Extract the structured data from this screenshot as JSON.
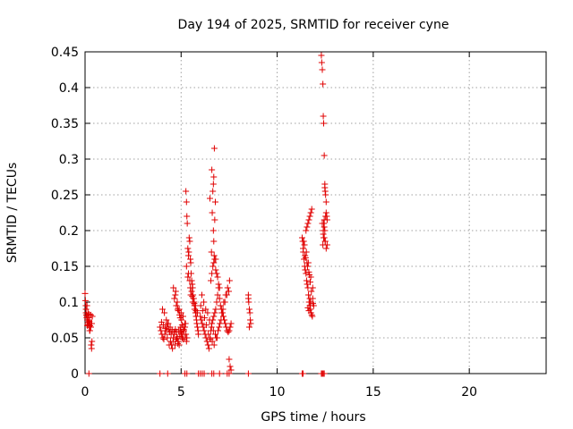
{
  "chart_data": {
    "type": "scatter",
    "title": "Day 194 of 2025, SRMTID for receiver cyne",
    "xlabel": "GPS time / hours",
    "ylabel": "SRMTID / TECUs",
    "xlim": [
      0,
      24
    ],
    "ylim": [
      0,
      0.45
    ],
    "xticks": [
      0,
      5,
      10,
      15,
      20
    ],
    "yticks": [
      0,
      0.05,
      0.1,
      0.15,
      0.2,
      0.25,
      0.3,
      0.35,
      0.4,
      0.45
    ],
    "xtick_labels": [
      "0",
      "5",
      "10",
      "15",
      "20"
    ],
    "ytick_labels": [
      "0",
      "0.05",
      "0.1",
      "0.15",
      "0.2",
      "0.25",
      "0.3",
      "0.35",
      "0.4",
      "0.45"
    ],
    "grid": true,
    "series": [
      {
        "name": "SRMTID",
        "color": "#e00000",
        "marker": "+",
        "x": [
          0.0,
          0.02,
          0.04,
          0.05,
          0.07,
          0.09,
          0.1,
          0.12,
          0.14,
          0.15,
          0.17,
          0.19,
          0.2,
          0.22,
          0.24,
          0.26,
          0.28,
          0.3,
          0.32,
          0.34,
          0.36,
          0.38,
          0.05,
          0.1,
          0.15,
          0.2,
          0.25,
          0.3,
          0.35,
          0.12,
          0.22,
          3.9,
          3.95,
          4.0,
          4.05,
          4.1,
          4.15,
          4.2,
          4.25,
          4.3,
          4.35,
          4.4,
          4.45,
          4.5,
          4.55,
          4.6,
          4.65,
          4.7,
          4.75,
          4.8,
          4.85,
          4.9,
          4.95,
          5.0,
          5.05,
          5.1,
          5.15,
          5.2,
          5.25,
          5.3,
          3.98,
          4.08,
          4.18,
          4.28,
          4.38,
          4.48,
          4.58,
          4.68,
          4.78,
          4.88,
          4.98,
          5.08,
          5.18,
          5.28,
          4.03,
          4.13,
          4.23,
          4.33,
          4.43,
          4.53,
          4.63,
          4.73,
          4.83,
          4.93,
          5.03,
          5.13,
          5.23,
          4.6,
          4.7,
          4.8,
          4.9,
          5.0,
          5.1,
          5.2,
          4.65,
          4.75,
          4.85,
          4.95,
          5.05,
          5.15,
          4.72,
          4.82,
          4.92,
          5.02,
          5.12,
          5.25,
          5.28,
          5.3,
          5.32,
          5.35,
          5.38,
          5.4,
          5.42,
          5.45,
          5.48,
          5.5,
          5.52,
          5.55,
          5.58,
          5.6,
          5.62,
          5.65,
          5.68,
          5.7,
          5.72,
          5.75,
          5.78,
          5.8,
          5.82,
          5.85,
          5.88,
          5.9,
          5.5,
          5.6,
          5.7,
          5.55,
          5.65,
          5.75,
          5.45,
          5.35,
          5.85,
          5.28,
          5.38,
          5.48,
          5.58,
          5.68,
          5.78,
          6.0,
          6.05,
          6.1,
          6.15,
          6.2,
          6.25,
          6.3,
          6.35,
          6.4,
          6.45,
          6.5,
          6.55,
          6.6,
          6.65,
          6.7,
          6.75,
          6.8,
          6.85,
          6.9,
          6.95,
          7.0,
          7.05,
          7.1,
          7.15,
          7.2,
          7.25,
          7.3,
          7.35,
          7.4,
          7.45,
          7.5,
          7.55,
          7.6,
          6.02,
          6.12,
          6.22,
          6.32,
          6.42,
          6.52,
          6.62,
          6.72,
          6.82,
          6.92,
          7.02,
          7.12,
          7.22,
          7.32,
          7.42,
          7.52,
          6.08,
          6.18,
          6.28,
          6.38,
          6.48,
          6.58,
          6.68,
          6.78,
          6.88,
          6.98,
          7.08,
          7.18,
          7.28,
          7.38,
          7.48,
          6.55,
          6.6,
          6.65,
          6.7,
          6.75,
          6.8,
          6.85,
          6.9,
          6.95,
          7.0,
          6.7,
          6.72,
          6.68,
          6.75,
          6.62,
          6.78,
          6.5,
          6.65,
          6.7,
          6.6,
          6.73,
          6.68,
          6.8,
          6.58,
          7.5,
          7.55,
          7.6,
          8.5,
          8.52,
          8.55,
          8.58,
          8.6,
          8.62,
          8.55,
          8.5,
          11.3,
          11.33,
          11.36,
          11.4,
          11.43,
          11.46,
          11.5,
          11.53,
          11.56,
          11.6,
          11.63,
          11.66,
          11.7,
          11.73,
          11.76,
          11.8,
          11.83,
          11.86,
          11.35,
          11.45,
          11.55,
          11.65,
          11.75,
          11.85,
          11.38,
          11.48,
          11.58,
          11.68,
          11.78,
          11.42,
          11.52,
          11.62,
          11.72,
          11.5,
          11.55,
          11.6,
          11.65,
          11.7,
          11.75,
          11.8,
          11.85,
          11.9,
          11.6,
          11.65,
          11.7,
          11.75,
          12.3,
          12.32,
          12.35,
          12.38,
          12.4,
          12.42,
          12.45,
          12.48,
          12.5,
          12.52,
          12.55,
          12.58,
          12.6,
          12.35,
          12.4,
          12.45,
          12.5,
          12.55,
          12.38,
          12.42,
          12.48,
          12.52,
          12.45,
          12.4,
          12.5,
          12.45,
          12.55,
          12.6,
          12.48,
          12.42
        ],
        "y": [
          0.112,
          0.102,
          0.095,
          0.085,
          0.082,
          0.078,
          0.08,
          0.075,
          0.07,
          0.068,
          0.072,
          0.078,
          0.083,
          0.065,
          0.06,
          0.067,
          0.07,
          0.082,
          0.04,
          0.035,
          0.045,
          0.08,
          0.09,
          0.095,
          0.085,
          0.075,
          0.06,
          0.065,
          0.07,
          0.067,
          0.073,
          0.065,
          0.06,
          0.055,
          0.05,
          0.048,
          0.055,
          0.06,
          0.065,
          0.07,
          0.062,
          0.058,
          0.045,
          0.04,
          0.035,
          0.05,
          0.055,
          0.062,
          0.058,
          0.05,
          0.045,
          0.04,
          0.06,
          0.055,
          0.05,
          0.048,
          0.06,
          0.065,
          0.055,
          0.05,
          0.072,
          0.068,
          0.063,
          0.05,
          0.04,
          0.055,
          0.045,
          0.04,
          0.05,
          0.06,
          0.065,
          0.055,
          0.05,
          0.045,
          0.09,
          0.085,
          0.075,
          0.07,
          0.065,
          0.06,
          0.058,
          0.048,
          0.042,
          0.052,
          0.058,
          0.062,
          0.07,
          0.12,
          0.11,
          0.1,
          0.09,
          0.085,
          0.08,
          0.07,
          0.105,
          0.095,
          0.088,
          0.078,
          0.068,
          0.06,
          0.115,
          0.09,
          0.082,
          0.075,
          0.065,
          0.255,
          0.24,
          0.22,
          0.21,
          0.175,
          0.165,
          0.17,
          0.19,
          0.185,
          0.16,
          0.155,
          0.14,
          0.13,
          0.125,
          0.12,
          0.11,
          0.105,
          0.1,
          0.095,
          0.09,
          0.085,
          0.08,
          0.075,
          0.07,
          0.065,
          0.06,
          0.055,
          0.11,
          0.1,
          0.09,
          0.115,
          0.105,
          0.095,
          0.13,
          0.135,
          0.085,
          0.15,
          0.14,
          0.12,
          0.108,
          0.098,
          0.088,
          0.08,
          0.075,
          0.07,
          0.065,
          0.06,
          0.055,
          0.05,
          0.045,
          0.04,
          0.035,
          0.05,
          0.06,
          0.07,
          0.075,
          0.08,
          0.085,
          0.09,
          0.1,
          0.11,
          0.12,
          0.105,
          0.095,
          0.09,
          0.085,
          0.08,
          0.075,
          0.07,
          0.065,
          0.06,
          0.058,
          0.06,
          0.065,
          0.07,
          0.095,
          0.088,
          0.078,
          0.068,
          0.055,
          0.048,
          0.045,
          0.04,
          0.05,
          0.06,
          0.07,
          0.085,
          0.1,
          0.11,
          0.12,
          0.13,
          0.11,
          0.1,
          0.09,
          0.085,
          0.075,
          0.065,
          0.06,
          0.055,
          0.05,
          0.065,
          0.075,
          0.09,
          0.1,
          0.11,
          0.115,
          0.13,
          0.14,
          0.15,
          0.155,
          0.16,
          0.145,
          0.14,
          0.135,
          0.125,
          0.12,
          0.185,
          0.165,
          0.2,
          0.215,
          0.225,
          0.24,
          0.245,
          0.255,
          0.275,
          0.285,
          0.315,
          0.265,
          0.16,
          0.17,
          0.02,
          0.01,
          0.005,
          0.11,
          0.1,
          0.09,
          0.085,
          0.075,
          0.07,
          0.065,
          0.105,
          0.19,
          0.185,
          0.17,
          0.16,
          0.15,
          0.145,
          0.14,
          0.13,
          0.125,
          0.12,
          0.11,
          0.1,
          0.095,
          0.09,
          0.085,
          0.082,
          0.08,
          0.098,
          0.175,
          0.165,
          0.155,
          0.142,
          0.135,
          0.12,
          0.185,
          0.162,
          0.15,
          0.138,
          0.115,
          0.18,
          0.17,
          0.155,
          0.128,
          0.2,
          0.205,
          0.21,
          0.215,
          0.22,
          0.225,
          0.23,
          0.105,
          0.095,
          0.092,
          0.088,
          0.105,
          0.1,
          0.445,
          0.435,
          0.425,
          0.405,
          0.36,
          0.35,
          0.305,
          0.265,
          0.255,
          0.25,
          0.24,
          0.22,
          0.215,
          0.21,
          0.2,
          0.19,
          0.185,
          0.175,
          0.18,
          0.19,
          0.2,
          0.22,
          0.215,
          0.195,
          0.185,
          0.205,
          0.225,
          0.18,
          0.26,
          0.21
        ]
      },
      {
        "name": "zero values",
        "color": "#e00000",
        "marker": "+",
        "x": [
          0.2,
          3.9,
          4.3,
          5.2,
          5.3,
          5.9,
          6.0,
          6.1,
          6.2,
          6.6,
          6.7,
          7.0,
          7.4,
          7.5,
          8.5,
          11.3,
          11.35,
          12.3,
          12.35,
          12.4,
          12.45
        ],
        "y": [
          0,
          0,
          0,
          0,
          0,
          0,
          0,
          0,
          0,
          0,
          0,
          0,
          0,
          0,
          0,
          0,
          0,
          0,
          0,
          0,
          0
        ]
      }
    ]
  }
}
